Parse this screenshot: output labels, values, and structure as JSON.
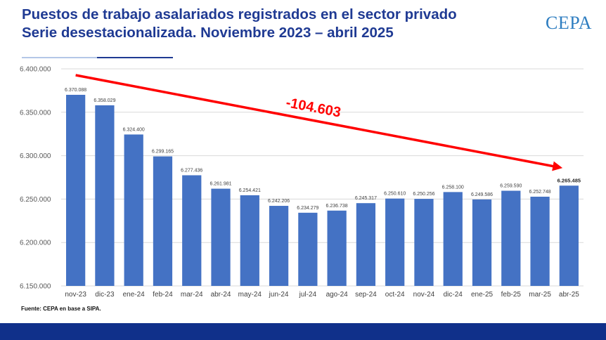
{
  "header": {
    "title_line1": "Puestos de trabajo asalariados registrados en el sector privado",
    "title_line2": "Serie desestacionalizada. Noviembre 2023 – abril 2025",
    "logo_text": "CEPA"
  },
  "source": "Fuente: CEPA en base a SIPA.",
  "colors": {
    "bar": "#4472c4",
    "arrow": "#ff0000",
    "title": "#1f3a93",
    "footer": "#10308a"
  },
  "chart_data": {
    "type": "bar",
    "title": "Puestos de trabajo asalariados registrados en el sector privado",
    "categories": [
      "nov-23",
      "dic-23",
      "ene-24",
      "feb-24",
      "mar-24",
      "abr-24",
      "may-24",
      "jun-24",
      "jul-24",
      "ago-24",
      "sep-24",
      "oct-24",
      "nov-24",
      "dic-24",
      "ene-25",
      "feb-25",
      "mar-25",
      "abr-25"
    ],
    "values": [
      6370088,
      6358029,
      6324400,
      6299165,
      6277436,
      6261981,
      6254421,
      6242206,
      6234279,
      6236738,
      6245317,
      6250610,
      6250256,
      6258100,
      6249586,
      6259590,
      6252748,
      6265485
    ],
    "value_labels": [
      "6.370.088",
      "6.358.029",
      "6.324.400",
      "6.299.165",
      "6.277.436",
      "6.261.981",
      "6.254.421",
      "6.242.206",
      "6.234.279",
      "6.236.738",
      "6.245.317",
      "6.250.610",
      "6.250.256",
      "6.258.100",
      "6.249.586",
      "6.259.590",
      "6.252.748",
      "6.265.485"
    ],
    "ylim": [
      6150000,
      6400000
    ],
    "yticks": [
      6150000,
      6200000,
      6250000,
      6300000,
      6350000,
      6400000
    ],
    "ytick_labels": [
      "6.150.000",
      "6.200.000",
      "6.250.000",
      "6.300.000",
      "6.350.000",
      "6.400.000"
    ],
    "grid": true,
    "legend": "none",
    "annotation": {
      "text": "-104.603",
      "from_category": "nov-23",
      "to_category": "abr-25"
    }
  }
}
